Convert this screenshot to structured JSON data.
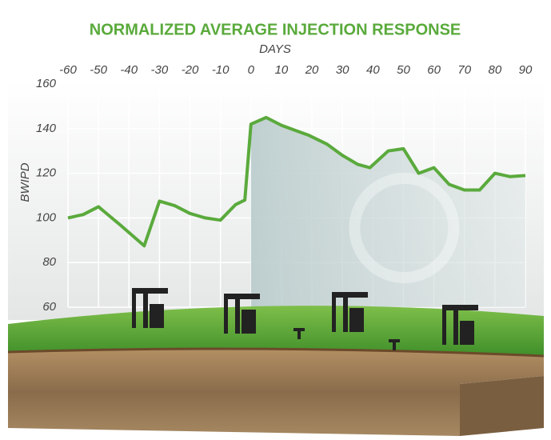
{
  "chart_data": {
    "type": "line",
    "title": "NORMALIZED AVERAGE INJECTION RESPONSE",
    "x_label": "DAYS",
    "y_label": "BWIPD",
    "x": [
      -60,
      -55,
      -50,
      -43,
      -35,
      -30,
      -25,
      -20,
      -15,
      -10,
      -5,
      -2,
      0,
      5,
      10,
      15,
      19,
      25,
      30,
      35,
      39,
      45,
      50,
      55,
      60,
      65,
      70,
      75,
      80,
      85,
      90
    ],
    "series": [
      {
        "color": "#5aaa3c",
        "values": [
          100,
          101.5,
          105,
          97,
          87.5,
          107.5,
          105.5,
          102,
          100,
          99,
          106,
          108,
          142,
          145,
          141.5,
          139,
          137,
          133,
          128,
          124,
          122.5,
          130,
          131,
          120,
          122.5,
          115,
          112.5,
          112.5,
          120,
          118.5,
          119
        ]
      }
    ],
    "xlim": [
      -60,
      90
    ],
    "xticks": [
      -60,
      -50,
      -40,
      -30,
      -20,
      -10,
      0,
      10,
      20,
      30,
      40,
      50,
      60,
      70,
      80,
      90
    ],
    "ylim": [
      60,
      160
    ],
    "yticks": [
      60,
      80,
      100,
      120,
      140,
      160
    ],
    "grid": true
  }
}
